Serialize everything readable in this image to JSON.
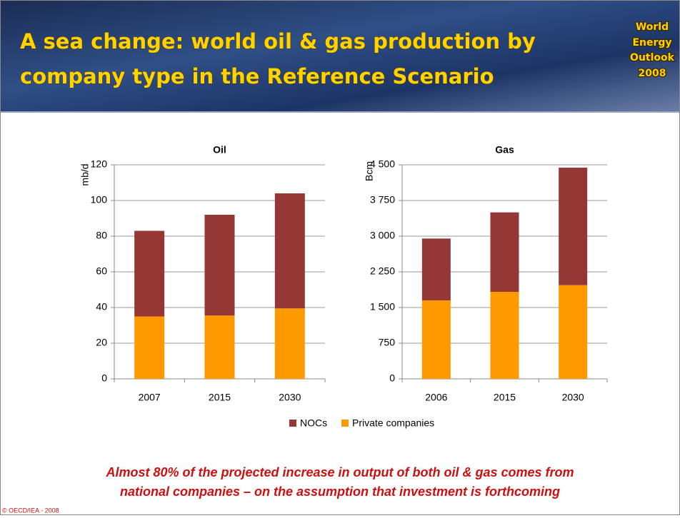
{
  "header": {
    "title": [
      "A sea change: world oil & gas production by",
      "company type in the Reference Scenario"
    ],
    "logo": [
      "World",
      "Energy",
      "Outlook",
      "2008"
    ]
  },
  "chart_data": [
    {
      "type": "stacked_bar",
      "title": "Oil",
      "y_label": "mb/d",
      "categories": [
        "2007",
        "2015",
        "2030"
      ],
      "series": [
        {
          "name": "Private companies",
          "color": "#ff9900",
          "values": [
            35,
            35.5,
            39.5
          ]
        },
        {
          "name": "NOCs",
          "color": "#953735",
          "values": [
            48,
            56.5,
            64.5
          ]
        }
      ],
      "ylim": [
        0,
        120
      ],
      "yticks": [
        0,
        20,
        40,
        60,
        80,
        100,
        120
      ],
      "grid": true
    },
    {
      "type": "stacked_bar",
      "title": "Gas",
      "y_label": "Bcm",
      "categories": [
        "2006",
        "2015",
        "2030"
      ],
      "series": [
        {
          "color": "#ff9900",
          "values": [
            1650,
            1830,
            1970
          ]
        },
        {
          "color": "#953735",
          "values": [
            1300,
            1670,
            2470
          ]
        }
      ],
      "ylim": [
        0,
        4500
      ],
      "yticks": [
        0,
        750,
        {
          "value": 1500,
          "label": "1 500"
        },
        {
          "value": 2250,
          "label": "2 250"
        },
        {
          "value": 3000,
          "label": "3 000"
        },
        {
          "value": 3750,
          "label": "3 750"
        },
        {
          "value": 4500,
          "label": "4 500"
        }
      ],
      "grid": true
    }
  ],
  "caption": [
    "Almost 80% of the projected increase in output of both oil & gas comes from",
    "national companies – on the assumption that investment is forthcoming"
  ],
  "copyright": "© OECD/IEA - 2008"
}
